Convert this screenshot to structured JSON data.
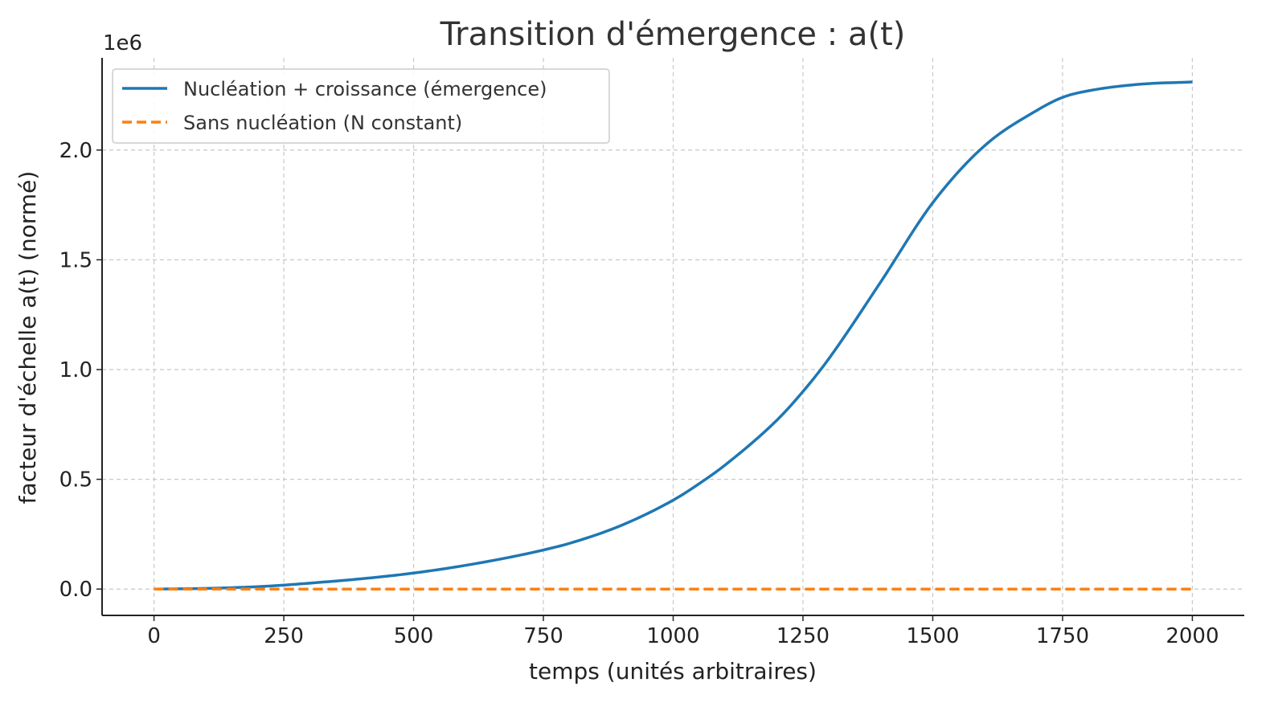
{
  "chart_data": {
    "type": "line",
    "title": "Transition d'émergence : a(t)",
    "xlabel": "temps (unités arbitraires)",
    "ylabel": "facteur d'échelle a(t) (normé)",
    "y_offset_label": "1e6",
    "xlim": [
      -100,
      2100
    ],
    "ylim": [
      -0.12,
      2.42
    ],
    "x_ticks": [
      0,
      250,
      500,
      750,
      1000,
      1250,
      1500,
      1750,
      2000
    ],
    "x_tick_labels": [
      "0",
      "250",
      "500",
      "750",
      "1000",
      "1250",
      "1500",
      "1750",
      "2000"
    ],
    "y_ticks": [
      0.0,
      0.5,
      1.0,
      1.5,
      2.0
    ],
    "y_tick_labels": [
      "0.0",
      "0.5",
      "1.0",
      "1.5",
      "2.0"
    ],
    "grid": true,
    "legend_position": "top-left",
    "series": [
      {
        "name": "Nucléation + croissance (émergence)",
        "color": "#1f77b4",
        "dash": "solid",
        "x": [
          0,
          100,
          200,
          250,
          300,
          400,
          500,
          600,
          700,
          750,
          800,
          900,
          1000,
          1050,
          1100,
          1200,
          1250,
          1300,
          1400,
          1500,
          1600,
          1700,
          1750,
          1800,
          1900,
          2000
        ],
        "y": [
          0.0,
          0.003,
          0.011,
          0.018,
          0.027,
          0.047,
          0.073,
          0.108,
          0.152,
          0.178,
          0.208,
          0.29,
          0.405,
          0.48,
          0.565,
          0.77,
          0.9,
          1.05,
          1.4,
          1.76,
          2.02,
          2.18,
          2.24,
          2.27,
          2.3,
          2.31
        ]
      },
      {
        "name": "Sans nucléation (N constant)",
        "color": "#ff7f0e",
        "dash": "dashed",
        "x": [
          0,
          250,
          500,
          750,
          1000,
          1250,
          1500,
          1750,
          2000
        ],
        "y": [
          0.0,
          0.0,
          0.0,
          0.0,
          0.0,
          0.0,
          0.0,
          0.0,
          0.0
        ]
      }
    ]
  }
}
